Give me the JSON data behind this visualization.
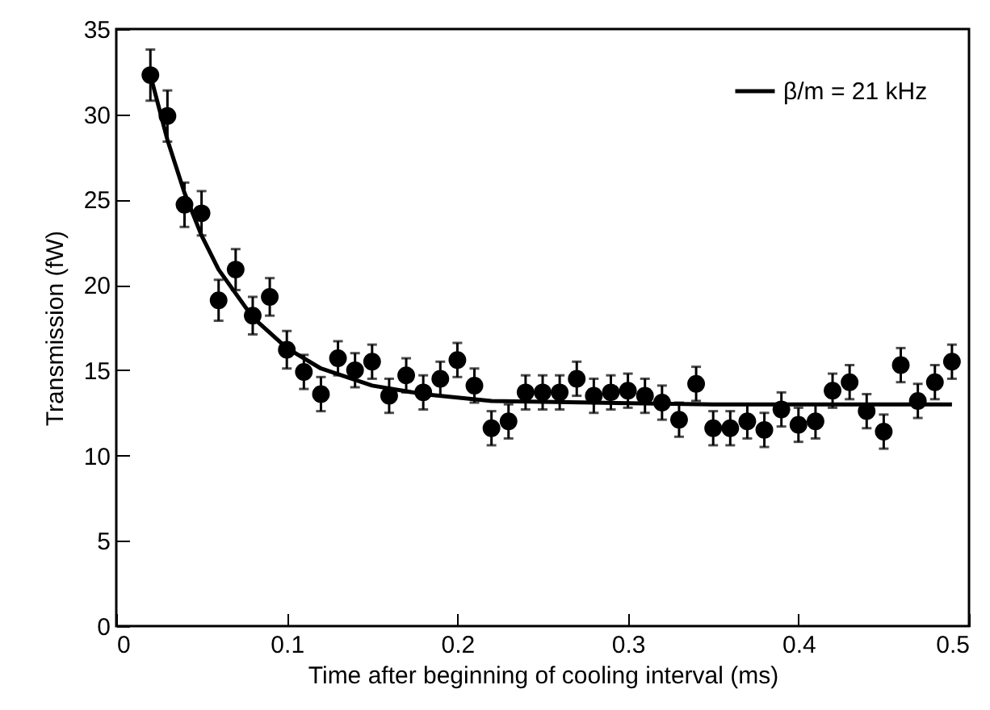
{
  "chart_data": {
    "type": "scatter",
    "xlabel": "Time after beginning of cooling interval (ms)",
    "ylabel": "Transmission (fW)",
    "xlim": [
      0,
      0.5
    ],
    "xticks": [
      0,
      0.1,
      0.2,
      0.3,
      0.4,
      0.5
    ],
    "ylim": [
      0,
      35
    ],
    "yticks": [
      0,
      5,
      10,
      15,
      20,
      25,
      30,
      35
    ],
    "grid": false,
    "legend": "top right",
    "marker": "circle",
    "series": [
      {
        "color": "#000000",
        "x": [
          0.02,
          0.03,
          0.04,
          0.05,
          0.06,
          0.07,
          0.08,
          0.09,
          0.1,
          0.11,
          0.12,
          0.13,
          0.14,
          0.15,
          0.16,
          0.17,
          0.18,
          0.19,
          0.2,
          0.21,
          0.22,
          0.23,
          0.24,
          0.25,
          0.26,
          0.27,
          0.28,
          0.29,
          0.3,
          0.31,
          0.32,
          0.33,
          0.34,
          0.35,
          0.36,
          0.37,
          0.38,
          0.39,
          0.4,
          0.41,
          0.42,
          0.43,
          0.44,
          0.45,
          0.46,
          0.47,
          0.48,
          0.49
        ],
        "values": [
          32.3,
          29.9,
          24.7,
          24.2,
          19.1,
          20.9,
          18.2,
          19.3,
          16.2,
          14.9,
          13.6,
          15.7,
          15.0,
          15.5,
          13.5,
          14.7,
          13.7,
          14.5,
          15.6,
          14.1,
          11.6,
          12.0,
          13.7,
          13.7,
          13.7,
          14.5,
          13.5,
          13.7,
          13.8,
          13.5,
          13.1,
          12.1,
          14.2,
          11.6,
          11.6,
          12.0,
          11.5,
          12.7,
          11.8,
          12.0,
          13.8,
          14.3,
          12.6,
          11.4,
          15.3,
          13.2,
          14.3,
          15.5
        ],
        "errors": [
          1.5,
          1.5,
          1.3,
          1.3,
          1.2,
          1.2,
          1.1,
          1.1,
          1.1,
          1.0,
          1.0,
          1.0,
          1.0,
          1.0,
          1.0,
          1.0,
          1.0,
          1.0,
          1.0,
          1.0,
          1.0,
          1.0,
          1.0,
          1.0,
          1.0,
          1.0,
          1.0,
          1.0,
          1.0,
          1.0,
          1.0,
          1.0,
          1.0,
          1.0,
          1.0,
          1.0,
          1.0,
          1.0,
          1.0,
          1.0,
          1.0,
          1.0,
          1.0,
          1.0,
          1.0,
          1.0,
          1.0,
          1.0
        ]
      },
      {
        "type": "line",
        "name": "β/m = 21 kHz",
        "color": "#000000",
        "line_style": "solid",
        "marker": "none",
        "x": [
          0.02,
          0.03,
          0.04,
          0.05,
          0.06,
          0.08,
          0.1,
          0.12,
          0.15,
          0.18,
          0.22,
          0.28,
          0.35,
          0.49
        ],
        "values": [
          32.3,
          28.5,
          25.4,
          22.9,
          20.9,
          18.1,
          16.3,
          15.1,
          14.1,
          13.6,
          13.2,
          13.1,
          13.0,
          13.0
        ]
      }
    ]
  }
}
